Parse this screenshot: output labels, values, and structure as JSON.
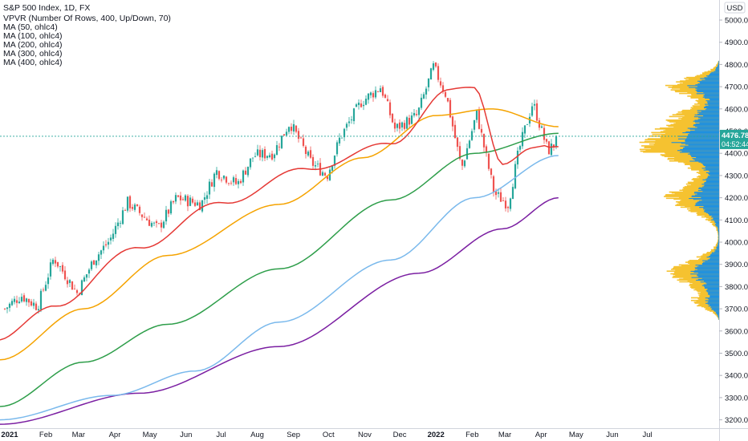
{
  "chart_data": {
    "type": "candlestick",
    "title": "S&P 500 Index, 1D, FX",
    "legend": [
      "VPVR (Number Of Rows, 400, Up/Down, 70)",
      "MA (50, ohlc4)",
      "MA (100, ohlc4)",
      "MA (200, ohlc4)",
      "MA (300, ohlc4)",
      "MA (400, ohlc4)"
    ],
    "currency": "USD",
    "y_ticks": [
      3200,
      3300,
      3400,
      3500,
      3600,
      3700,
      3800,
      3900,
      4000,
      4100,
      4200,
      4300,
      4400,
      4500,
      4600,
      4700,
      4800,
      4900,
      5000
    ],
    "y_tick_labels": [
      "3200.00",
      "3300.00",
      "3400.00",
      "3500.00",
      "3600.00",
      "3700.00",
      "3800.00",
      "3900.00",
      "4000.00",
      "4100.00",
      "4200.00",
      "4300.00",
      "4400.00",
      "4500.00",
      "4600.00",
      "4700.00",
      "4800.00",
      "4900.00",
      "5000.00"
    ],
    "x_ticks": [
      "2021",
      "Feb",
      "Mar",
      "Apr",
      "May",
      "Jun",
      "Jul",
      "Aug",
      "Sep",
      "Oct",
      "Nov",
      "Dec",
      "2022",
      "Feb",
      "Mar",
      "Apr",
      "May",
      "Jun",
      "Jul"
    ],
    "price_path": [
      [
        "2021-01-01",
        3700
      ],
      [
        "2021-01-15",
        3760
      ],
      [
        "2021-01-29",
        3710
      ],
      [
        "2021-02-12",
        3930
      ],
      [
        "2021-03-04",
        3770
      ],
      [
        "2021-03-18",
        3920
      ],
      [
        "2021-04-01",
        4010
      ],
      [
        "2021-04-16",
        4180
      ],
      [
        "2021-05-12",
        4060
      ],
      [
        "2021-05-28",
        4200
      ],
      [
        "2021-06-18",
        4170
      ],
      [
        "2021-07-01",
        4320
      ],
      [
        "2021-07-19",
        4260
      ],
      [
        "2021-08-02",
        4390
      ],
      [
        "2021-08-19",
        4400
      ],
      [
        "2021-09-02",
        4540
      ],
      [
        "2021-09-20",
        4360
      ],
      [
        "2021-10-04",
        4300
      ],
      [
        "2021-10-15",
        4470
      ],
      [
        "2021-11-02",
        4630
      ],
      [
        "2021-11-19",
        4700
      ],
      [
        "2021-12-01",
        4510
      ],
      [
        "2021-12-20",
        4570
      ],
      [
        "2022-01-03",
        4790
      ],
      [
        "2022-01-14",
        4660
      ],
      [
        "2022-01-27",
        4330
      ],
      [
        "2022-02-09",
        4580
      ],
      [
        "2022-02-24",
        4220
      ],
      [
        "2022-03-08",
        4170
      ],
      [
        "2022-03-17",
        4410
      ],
      [
        "2022-03-29",
        4630
      ],
      [
        "2022-04-11",
        4410
      ],
      [
        "2022-04-20",
        4460
      ]
    ],
    "last_price": 4476.78,
    "last_price_label": "4476.78",
    "countdown": "04:52:44",
    "ma_end_values": {
      "MA50": 4430,
      "MA100": 4520,
      "MA200": 4490,
      "MA300": 4390,
      "MA400": 4200
    },
    "ma_colors": {
      "MA50": "#e53935",
      "MA100": "#f5a300",
      "MA200": "#2e9e4a",
      "MA300": "#7ab9ec",
      "MA400": "#7b1fa2"
    },
    "candle_colors": {
      "up": "#26a69a",
      "down": "#ef5350"
    },
    "vpvr_colors": {
      "up": "#1e90e0",
      "down": "#f5c230"
    },
    "price_label_color": "#26a69a",
    "grid": false
  }
}
